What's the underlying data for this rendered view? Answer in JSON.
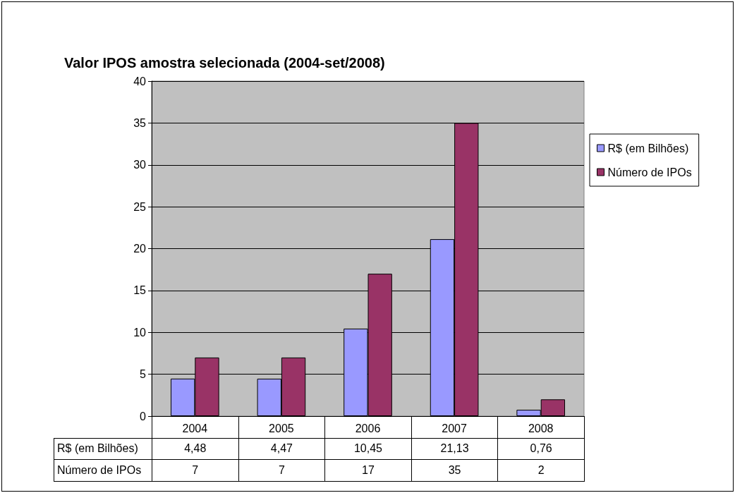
{
  "chart_data": {
    "type": "bar",
    "title": "Valor IPOS amostra selecionada (2004-set/2008)",
    "categories": [
      "2004",
      "2005",
      "2006",
      "2007",
      "2008"
    ],
    "series": [
      {
        "name": "R$ (em Bilhões)",
        "color": "#9999ff",
        "values": [
          4.48,
          4.47,
          10.45,
          21.13,
          0.76
        ],
        "value_labels": [
          "4,48",
          "4,47",
          "10,45",
          "21,13",
          "0,76"
        ]
      },
      {
        "name": "Número de IPOs",
        "color": "#993366",
        "values": [
          7,
          7,
          17,
          35,
          2
        ],
        "value_labels": [
          "7",
          "7",
          "17",
          "35",
          "2"
        ]
      }
    ],
    "ylim": [
      0,
      40
    ],
    "yticks": [
      0,
      5,
      10,
      15,
      20,
      25,
      30,
      35,
      40
    ],
    "grid": "y",
    "legend": "right"
  }
}
